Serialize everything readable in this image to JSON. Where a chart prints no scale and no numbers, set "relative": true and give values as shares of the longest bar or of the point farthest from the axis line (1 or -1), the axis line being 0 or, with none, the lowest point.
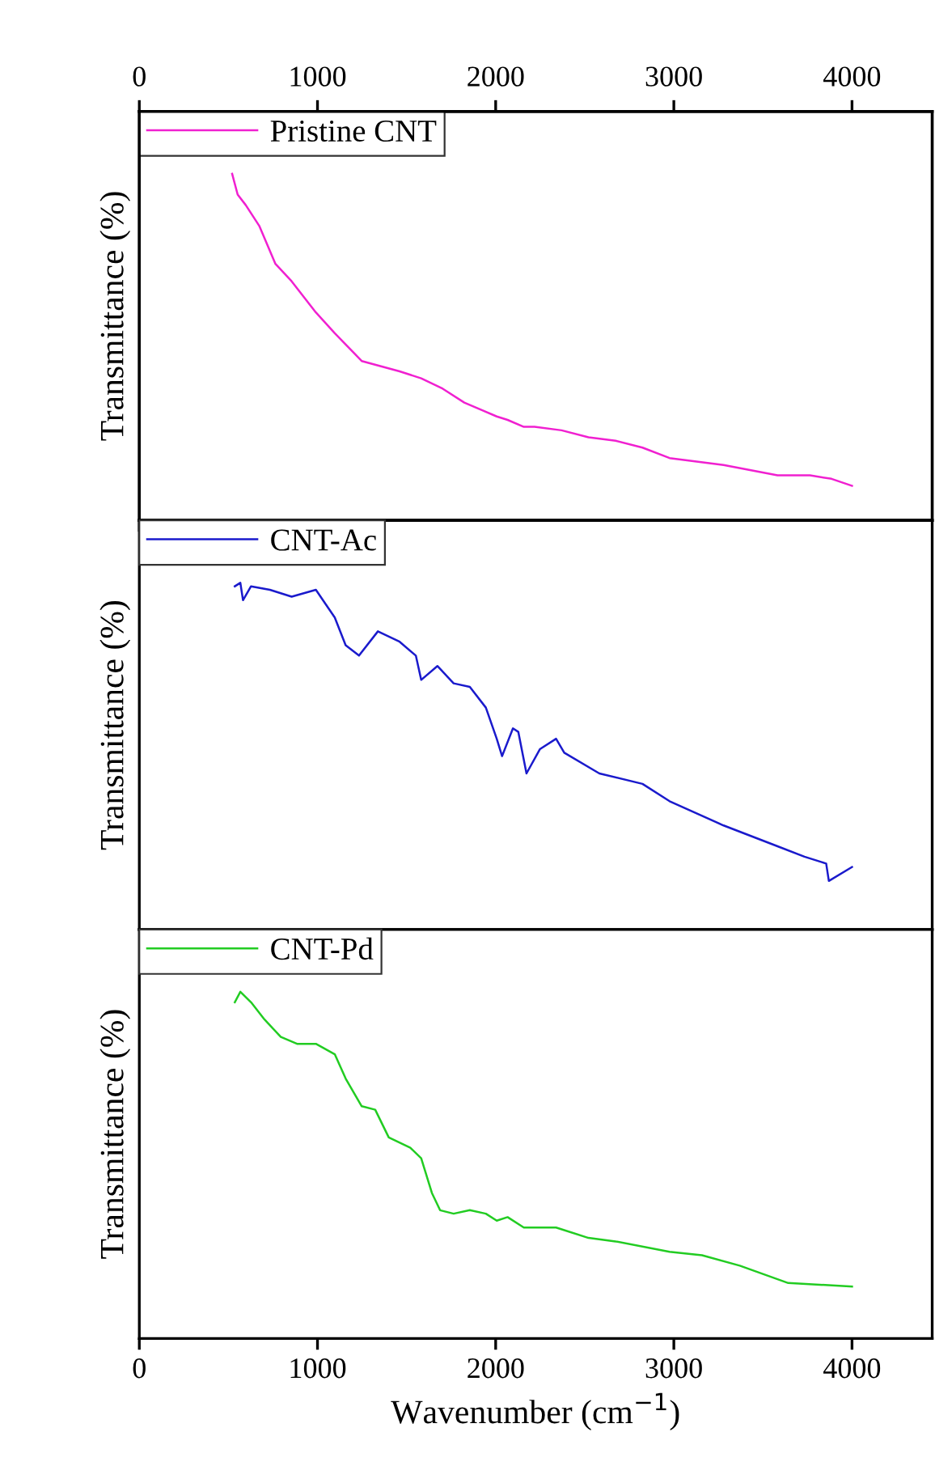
{
  "chart_data": [
    {
      "type": "line",
      "relative": true,
      "ylabel": "Transmittance (%)",
      "xlim": [
        0,
        4450
      ],
      "xticks": [
        0,
        1000,
        2000,
        3000,
        4000
      ],
      "x2lim": [
        0,
        4450
      ],
      "x2ticks": [
        0,
        1000,
        2000,
        3000,
        4000
      ],
      "tick_labels": false,
      "legend": "top left",
      "grid": false,
      "series": [
        {
          "name": "Pristine CNT",
          "color": "#f020d0",
          "x": [
            521,
            552,
            597,
            673,
            764,
            855,
            991,
            1097,
            1248,
            1461,
            1582,
            1703,
            1824,
            2006,
            2067,
            2158,
            2218,
            2370,
            2521,
            2673,
            2824,
            2976,
            3279,
            3582,
            3764,
            3885,
            4000
          ],
          "values": [
            1.0,
            0.94,
            0.91,
            0.85,
            0.74,
            0.69,
            0.6,
            0.54,
            0.46,
            0.43,
            0.41,
            0.38,
            0.34,
            0.3,
            0.29,
            0.27,
            0.27,
            0.26,
            0.24,
            0.23,
            0.21,
            0.18,
            0.16,
            0.13,
            0.13,
            0.12,
            0.1
          ]
        }
      ]
    },
    {
      "type": "line",
      "relative": true,
      "ylabel": "Transmittance (%)",
      "xlim": [
        0,
        4450
      ],
      "xticks": [
        0,
        1000,
        2000,
        3000,
        4000
      ],
      "tick_labels": false,
      "legend": "top left",
      "grid": false,
      "series": [
        {
          "name": "CNT-Ac",
          "color": "#1a1acc",
          "x": [
            536,
            567,
            582,
            627,
            733,
            855,
            991,
            1097,
            1158,
            1233,
            1339,
            1461,
            1552,
            1582,
            1673,
            1764,
            1855,
            1945,
            2006,
            2036,
            2097,
            2127,
            2173,
            2248,
            2339,
            2385,
            2582,
            2824,
            2976,
            3279,
            3582,
            3733,
            3855,
            3870,
            4000
          ],
          "values": [
            0.99,
            1.0,
            0.95,
            0.99,
            0.98,
            0.96,
            0.98,
            0.9,
            0.82,
            0.79,
            0.86,
            0.83,
            0.79,
            0.72,
            0.76,
            0.71,
            0.7,
            0.64,
            0.55,
            0.5,
            0.58,
            0.57,
            0.45,
            0.52,
            0.55,
            0.51,
            0.45,
            0.42,
            0.37,
            0.3,
            0.24,
            0.21,
            0.19,
            0.14,
            0.18
          ]
        }
      ]
    },
    {
      "type": "line",
      "relative": true,
      "ylabel": "Transmittance (%)",
      "xlabel": "Wavenumber (cm$^{−1}$)",
      "xlim": [
        0,
        4450
      ],
      "xticks": [
        0,
        1000,
        2000,
        3000,
        4000
      ],
      "tick_labels": "x",
      "legend": "top left",
      "grid": false,
      "series": [
        {
          "name": "CNT-Pd",
          "color": "#22cc22",
          "x": [
            536,
            567,
            627,
            703,
            794,
            885,
            991,
            1097,
            1158,
            1248,
            1324,
            1400,
            1521,
            1582,
            1642,
            1688,
            1764,
            1855,
            1945,
            2006,
            2067,
            2158,
            2188,
            2339,
            2521,
            2673,
            2976,
            3158,
            3370,
            3642,
            4000
          ],
          "values": [
            0.97,
            1.0,
            0.97,
            0.92,
            0.87,
            0.85,
            0.85,
            0.82,
            0.75,
            0.67,
            0.66,
            0.58,
            0.55,
            0.52,
            0.42,
            0.37,
            0.36,
            0.37,
            0.36,
            0.34,
            0.35,
            0.32,
            0.32,
            0.32,
            0.29,
            0.28,
            0.25,
            0.24,
            0.21,
            0.16,
            0.15
          ]
        }
      ]
    }
  ]
}
